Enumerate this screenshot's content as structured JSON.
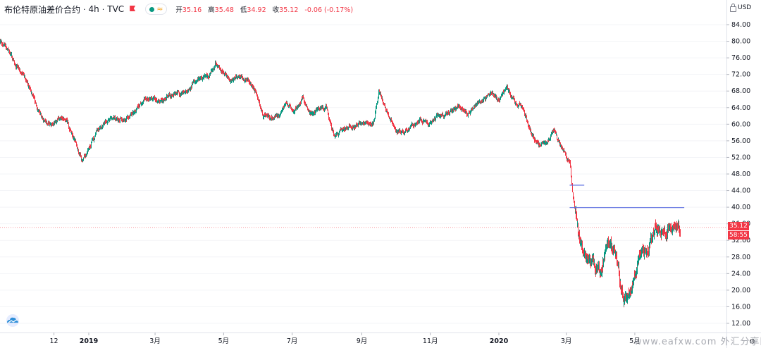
{
  "legend": {
    "symbol": "布伦特原油差价合约",
    "interval": "4h",
    "source": "TVC",
    "ohlc": {
      "open_label": "开",
      "open": "35.16",
      "high_label": "高",
      "high": "35.48",
      "low_label": "低",
      "low": "34.92",
      "close_label": "收",
      "close": "35.12",
      "change": "-0.06 (-0.17%)"
    }
  },
  "currency": "USD",
  "price_badge": "35.12",
  "countdown_badge": "58:55",
  "watermark": "www.eafxw.com 外汇分享网",
  "colors": {
    "up": "#089981",
    "down": "#f23645",
    "hline": "#5b6ee0",
    "price_line": "#f23645"
  },
  "icons": {
    "flag": "flag-icon",
    "indicator": "indicator-dot-icon",
    "wave": "wave-icon",
    "settings": "settings-icon",
    "logo": "cloud-logo-icon",
    "lock": "lock-icon"
  },
  "chart_data": {
    "type": "candlestick",
    "title": "布伦特原油差价合约 · 4h · TVC",
    "ylabel": "",
    "xlabel": "",
    "ylim": [
      10,
      88
    ],
    "y_ticks": [
      84,
      80,
      76,
      72,
      68,
      64,
      60,
      56,
      52,
      48,
      44,
      40,
      36,
      32,
      28,
      24,
      20,
      16,
      12
    ],
    "y_tick_labels": [
      "84.00",
      "80.00",
      "76.00",
      "72.00",
      "68.00",
      "64.00",
      "60.00",
      "56.00",
      "52.00",
      "48.00",
      "44.00",
      "40.00",
      "36.00",
      "32.00",
      "28.00",
      "24.00",
      "20.00",
      "16.00",
      "12.00"
    ],
    "x_ticks": [
      "12",
      "2019",
      "3月",
      "5月",
      "7月",
      "9月",
      "11月",
      "2020",
      "3月",
      "5月"
    ],
    "x_tick_dates": [
      "2018-12-01",
      "2019-01-01",
      "2019-03-01",
      "2019-05-01",
      "2019-07-01",
      "2019-09-01",
      "2019-11-01",
      "2020-01-01",
      "2020-03-01",
      "2020-05-01"
    ],
    "x_range": [
      "2018-10-03",
      "2020-06-10"
    ],
    "last_price": 35.12,
    "price_path": [
      [
        "2018-10-03",
        82
      ],
      [
        "2018-10-10",
        81
      ],
      [
        "2018-10-17",
        79.5
      ],
      [
        "2018-10-24",
        76
      ],
      [
        "2018-10-31",
        73
      ],
      [
        "2018-11-07",
        70
      ],
      [
        "2018-11-14",
        65.5
      ],
      [
        "2018-11-21",
        61
      ],
      [
        "2018-11-28",
        59.5
      ],
      [
        "2018-12-05",
        61.5
      ],
      [
        "2018-12-12",
        60.5
      ],
      [
        "2018-12-19",
        56.5
      ],
      [
        "2018-12-26",
        51
      ],
      [
        "2019-01-02",
        54.5
      ],
      [
        "2019-01-09",
        58.5
      ],
      [
        "2019-01-16",
        60.5
      ],
      [
        "2019-01-23",
        61.5
      ],
      [
        "2019-01-30",
        61
      ],
      [
        "2019-02-06",
        62
      ],
      [
        "2019-02-13",
        63.5
      ],
      [
        "2019-02-20",
        66.5
      ],
      [
        "2019-02-27",
        66
      ],
      [
        "2019-03-06",
        65.5
      ],
      [
        "2019-03-13",
        67
      ],
      [
        "2019-03-20",
        67.5
      ],
      [
        "2019-03-27",
        67.5
      ],
      [
        "2019-04-03",
        69.5
      ],
      [
        "2019-04-10",
        71
      ],
      [
        "2019-04-17",
        71.5
      ],
      [
        "2019-04-24",
        74.5
      ],
      [
        "2019-05-01",
        72.5
      ],
      [
        "2019-05-08",
        70.5
      ],
      [
        "2019-05-15",
        71.5
      ],
      [
        "2019-05-22",
        71
      ],
      [
        "2019-05-29",
        68
      ],
      [
        "2019-06-05",
        62
      ],
      [
        "2019-06-12",
        61.5
      ],
      [
        "2019-06-19",
        62
      ],
      [
        "2019-06-26",
        65.5
      ],
      [
        "2019-07-03",
        63
      ],
      [
        "2019-07-10",
        66.5
      ],
      [
        "2019-07-17",
        62.5
      ],
      [
        "2019-07-24",
        63.5
      ],
      [
        "2019-07-31",
        64
      ],
      [
        "2019-08-07",
        57.5
      ],
      [
        "2019-08-14",
        58.5
      ],
      [
        "2019-08-21",
        59.5
      ],
      [
        "2019-08-28",
        60
      ],
      [
        "2019-09-04",
        60.5
      ],
      [
        "2019-09-11",
        60
      ],
      [
        "2019-09-16",
        68
      ],
      [
        "2019-09-25",
        62
      ],
      [
        "2019-10-02",
        58
      ],
      [
        "2019-10-09",
        58.5
      ],
      [
        "2019-10-16",
        59.5
      ],
      [
        "2019-10-23",
        61
      ],
      [
        "2019-10-30",
        60
      ],
      [
        "2019-11-06",
        62
      ],
      [
        "2019-11-13",
        62
      ],
      [
        "2019-11-20",
        63
      ],
      [
        "2019-11-27",
        64
      ],
      [
        "2019-12-04",
        62.5
      ],
      [
        "2019-12-11",
        64.5
      ],
      [
        "2019-12-18",
        66
      ],
      [
        "2019-12-25",
        67.5
      ],
      [
        "2020-01-01",
        66
      ],
      [
        "2020-01-08",
        69.5
      ],
      [
        "2020-01-15",
        65
      ],
      [
        "2020-01-22",
        64
      ],
      [
        "2020-01-29",
        58
      ],
      [
        "2020-02-05",
        55
      ],
      [
        "2020-02-12",
        55.5
      ],
      [
        "2020-02-19",
        58.5
      ],
      [
        "2020-02-26",
        54
      ],
      [
        "2020-03-04",
        51
      ],
      [
        "2020-03-06",
        45
      ],
      [
        "2020-03-09",
        39
      ],
      [
        "2020-03-12",
        33
      ],
      [
        "2020-03-17",
        28
      ],
      [
        "2020-03-24",
        27
      ],
      [
        "2020-03-31",
        23
      ],
      [
        "2020-04-07",
        32.5
      ],
      [
        "2020-04-14",
        29
      ],
      [
        "2020-04-21",
        17
      ],
      [
        "2020-04-28",
        21
      ],
      [
        "2020-05-05",
        28
      ],
      [
        "2020-05-12",
        30
      ],
      [
        "2020-05-19",
        34.5
      ],
      [
        "2020-05-26",
        34
      ],
      [
        "2020-06-03",
        36
      ],
      [
        "2020-06-10",
        35.12
      ]
    ],
    "horizontal_lines": [
      {
        "price": 45.3,
        "from": "2020-03-04",
        "to": "2020-03-17"
      },
      {
        "price": 39.9,
        "from": "2020-03-04",
        "to": "2020-06-14"
      }
    ]
  }
}
